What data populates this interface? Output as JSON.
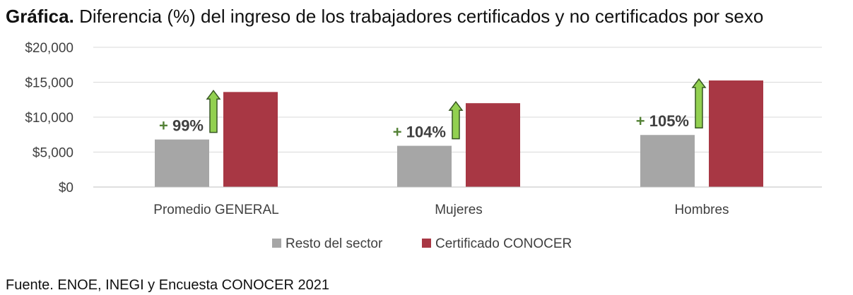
{
  "title_prefix": "Gráfica.",
  "title_text": "Diferencia (%) del ingreso de los trabajadores certificados y no certificados por sexo",
  "source": "Fuente. ENOE, INEGI y Encuesta CONOCER 2021",
  "colors": {
    "resto": "#a6a6a6",
    "conocer": "#a83744",
    "arrow_fill": "#92d050",
    "arrow_stroke": "#375623",
    "pct_label": "#538135",
    "grid": "#d9d9d9",
    "axis_text": "#404040"
  },
  "chart_data": {
    "type": "bar",
    "categories": [
      "Promedio GENERAL",
      "Mujeres",
      "Hombres"
    ],
    "series": [
      {
        "name": "Resto del sector",
        "values": [
          6800,
          5900,
          7450
        ]
      },
      {
        "name": "Certificado CONOCER",
        "values": [
          13600,
          12000,
          15250
        ]
      }
    ],
    "annotations": [
      "+ 99%",
      "+ 104%",
      "+ 105%"
    ],
    "ylim": [
      0,
      20000
    ],
    "yticks": [
      "$0",
      "$5,000",
      "$10,000",
      "$15,000",
      "$20,000"
    ],
    "grid": true,
    "legend_position": "bottom"
  }
}
